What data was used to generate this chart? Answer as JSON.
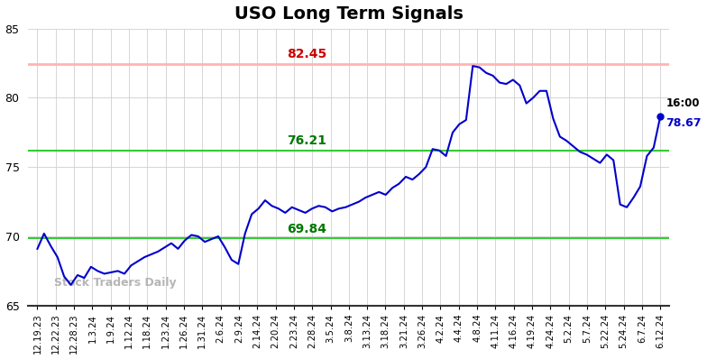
{
  "title": "USO Long Term Signals",
  "ylim": [
    65,
    85
  ],
  "yticks": [
    65,
    70,
    75,
    80,
    85
  ],
  "hline_red": 82.45,
  "hline_green_upper": 76.21,
  "hline_green_lower": 69.84,
  "hline_red_color": "#ffb3b3",
  "hline_green_color": "#33cc33",
  "label_red": "82.45",
  "label_green_upper": "76.21",
  "label_green_lower": "69.84",
  "label_red_color": "#cc0000",
  "label_green_color": "#007700",
  "end_label_time": "16:00",
  "end_label_value": "78.67",
  "end_label_color": "#0000cc",
  "watermark": "Stock Traders Daily",
  "watermark_color": "#aaaaaa",
  "line_color": "#0000cc",
  "dot_color": "#0000cc",
  "background_color": "#ffffff",
  "title_fontsize": 14,
  "x_labels": [
    "12.19.23",
    "12.22.23",
    "12.28.23",
    "1.3.24",
    "1.9.24",
    "1.12.24",
    "1.18.24",
    "1.23.24",
    "1.26.24",
    "1.31.24",
    "2.6.24",
    "2.9.24",
    "2.14.24",
    "2.20.24",
    "2.23.24",
    "2.28.24",
    "3.5.24",
    "3.8.24",
    "3.13.24",
    "3.18.24",
    "3.21.24",
    "3.26.24",
    "4.2.24",
    "4.4.24",
    "4.8.24",
    "4.11.24",
    "4.16.24",
    "4.19.24",
    "4.24.24",
    "5.2.24",
    "5.7.24",
    "5.22.24",
    "5.24.24",
    "6.7.24",
    "6.12.24"
  ],
  "prices": [
    69.1,
    70.2,
    69.3,
    68.5,
    67.1,
    66.5,
    67.2,
    67.0,
    67.8,
    67.5,
    67.3,
    67.4,
    67.5,
    67.3,
    67.9,
    68.2,
    68.5,
    68.7,
    68.9,
    69.2,
    69.5,
    69.1,
    69.7,
    70.1,
    70.0,
    69.6,
    69.8,
    70.0,
    69.2,
    68.3,
    68.0,
    70.2,
    71.6,
    72.0,
    72.6,
    72.2,
    72.0,
    71.7,
    72.1,
    71.9,
    71.7,
    72.0,
    72.2,
    72.1,
    71.8,
    72.0,
    72.1,
    72.3,
    72.5,
    72.8,
    73.0,
    73.2,
    73.0,
    73.5,
    73.8,
    74.3,
    74.1,
    74.5,
    75.0,
    76.3,
    76.2,
    75.8,
    77.5,
    78.1,
    78.4,
    82.3,
    82.2,
    81.8,
    81.6,
    81.1,
    81.0,
    81.3,
    80.9,
    79.6,
    80.0,
    80.5,
    80.5,
    78.5,
    77.2,
    76.9,
    76.5,
    76.1,
    75.9,
    75.6,
    75.3,
    75.9,
    75.5,
    72.3,
    72.1,
    72.8,
    73.6,
    75.8,
    76.4,
    78.67
  ]
}
